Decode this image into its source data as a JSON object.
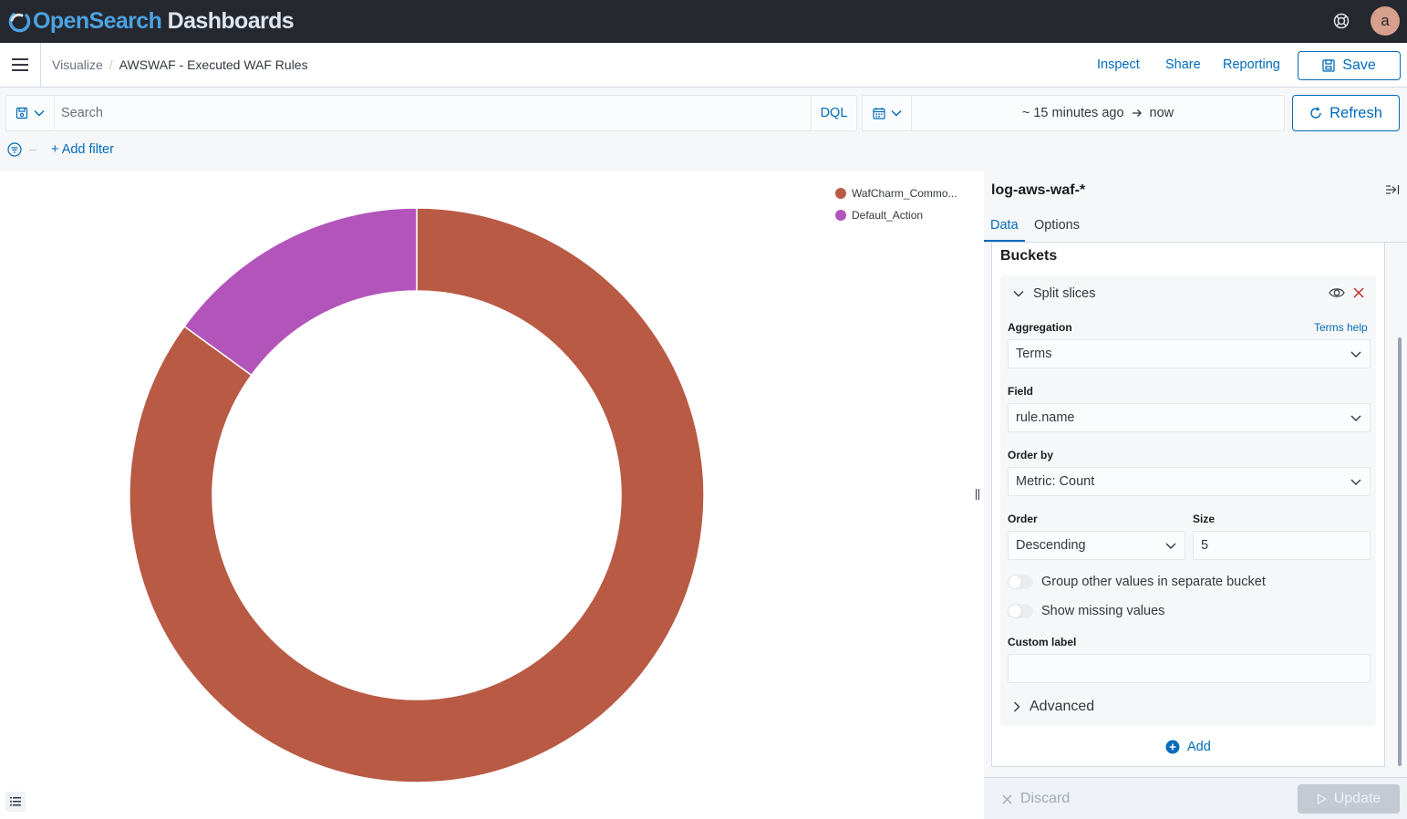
{
  "header": {
    "brand_primary": "OpenSearch",
    "brand_secondary": " Dashboards",
    "avatar_initial": "a"
  },
  "breadcrumb": {
    "parent": "Visualize",
    "current": "AWSWAF - Executed WAF Rules"
  },
  "nav": {
    "inspect": "Inspect",
    "share": "Share",
    "reporting": "Reporting",
    "save": "Save"
  },
  "query": {
    "search_placeholder": "Search",
    "language": "DQL",
    "time_start": "~ 15 minutes ago",
    "time_end": "now",
    "refresh": "Refresh",
    "add_filter": "+ Add filter"
  },
  "chart_data": {
    "type": "pie",
    "donut": true,
    "series": [
      {
        "label": "WafCharm_Commo...",
        "value": 0.85,
        "color": "#b85a44"
      },
      {
        "label": "Default_Action",
        "value": 0.15,
        "color": "#b354bb"
      }
    ],
    "legend_position": "top-right"
  },
  "sidebar": {
    "index_pattern": "log-aws-waf-*",
    "tabs": [
      "Data",
      "Options"
    ],
    "section_title": "Buckets",
    "agg_title": "Split slices",
    "aggregation_label": "Aggregation",
    "terms_help": "Terms help",
    "aggregation_value": "Terms",
    "field_label": "Field",
    "field_value": "rule.name",
    "order_by_label": "Order by",
    "order_by_value": "Metric: Count",
    "order_label": "Order",
    "order_value": "Descending",
    "size_label": "Size",
    "size_value": "5",
    "group_other": "Group other values in separate bucket",
    "show_missing": "Show missing values",
    "custom_label": "Custom label",
    "custom_label_value": "",
    "advanced": "Advanced",
    "add": "Add",
    "discard": "Discard",
    "update": "Update"
  }
}
